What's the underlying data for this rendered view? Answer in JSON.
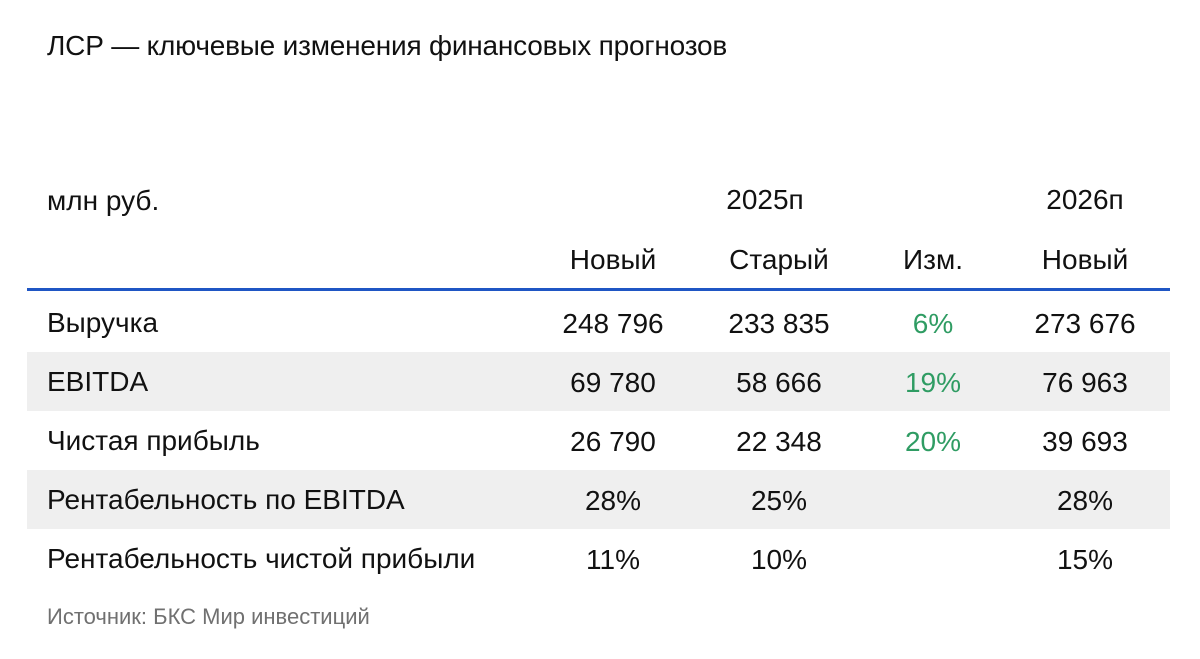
{
  "title": "ЛСР — ключевые изменения финансовых прогнозов",
  "units": "млн руб.",
  "header": {
    "year_2025": "2025п",
    "year_2026": "2026п",
    "columns": [
      "Новый",
      "Старый",
      "Изм.",
      "Новый"
    ]
  },
  "accent_color": "#1f56c4",
  "positive_color": "#2f9c63",
  "rows": [
    {
      "label": "Выручка",
      "new_2025": "248 796",
      "old_2025": "233 835",
      "change": "6%",
      "new_2026": "273 676"
    },
    {
      "label": "EBITDA",
      "new_2025": "69 780",
      "old_2025": "58 666",
      "change": "19%",
      "new_2026": "76 963"
    },
    {
      "label": "Чистая прибыль",
      "new_2025": "26 790",
      "old_2025": "22 348",
      "change": "20%",
      "new_2026": "39 693"
    },
    {
      "label": "Рентабельность по EBITDA",
      "new_2025": "28%",
      "old_2025": "25%",
      "change": "",
      "new_2026": "28%"
    },
    {
      "label": "Рентабельность чистой прибыли",
      "new_2025": "11%",
      "old_2025": "10%",
      "change": "",
      "new_2026": "15%"
    }
  ],
  "source": "Источник: БКС Мир инвестиций"
}
